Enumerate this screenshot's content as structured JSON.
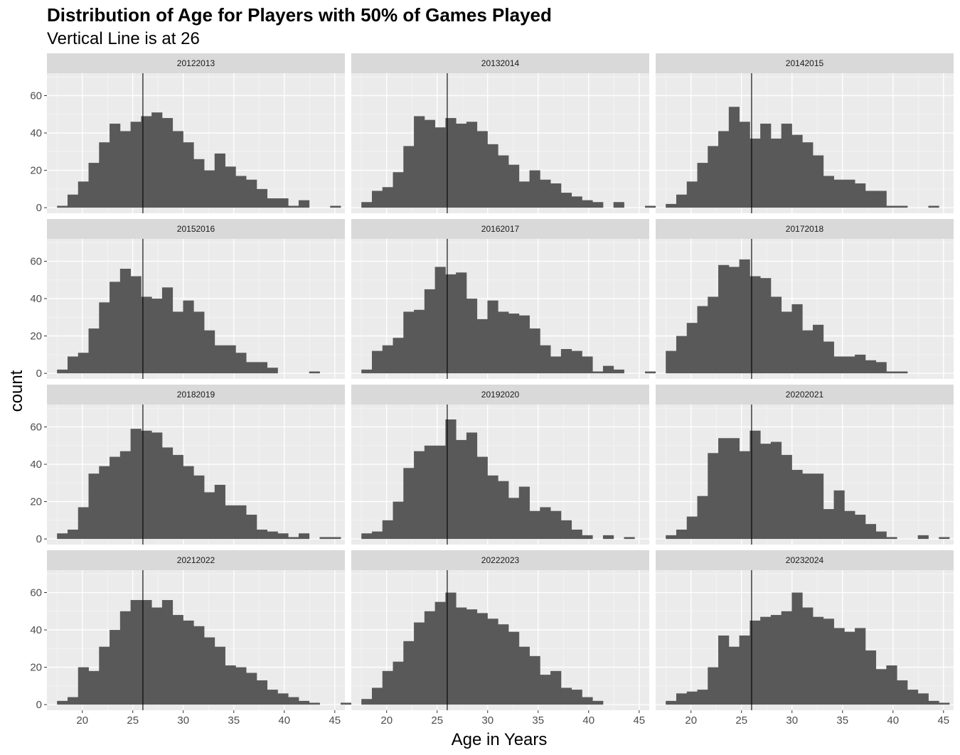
{
  "chart_data": {
    "type": "bar",
    "title": "Distribution of Age for Players with 50% of Games Played",
    "subtitle": "Vertical Line is at 26",
    "xlabel": "Age in Years",
    "ylabel": "count",
    "xlim": [
      16.5,
      46
    ],
    "ylim": [
      -3,
      72
    ],
    "x_ticks": [
      20,
      25,
      30,
      35,
      40,
      45
    ],
    "y_ticks": [
      0,
      20,
      40,
      60
    ],
    "vline": 26,
    "grid": true,
    "bin_start": 17.5,
    "bin_width": 1.04,
    "bar_color": "#595959",
    "panels": [
      {
        "season": "20122013",
        "counts": [
          1,
          7,
          14,
          24,
          35,
          45,
          41,
          46,
          49,
          51,
          48,
          41,
          35,
          26,
          20,
          29,
          22,
          17,
          15,
          10,
          5,
          5,
          1,
          4,
          0,
          0,
          1
        ]
      },
      {
        "season": "20132014",
        "counts": [
          3,
          9,
          11,
          19,
          33,
          49,
          47,
          43,
          48,
          45,
          46,
          41,
          34,
          28,
          23,
          14,
          20,
          15,
          13,
          8,
          6,
          4,
          3,
          0,
          3,
          0,
          0,
          1
        ]
      },
      {
        "season": "20142015",
        "counts": [
          2,
          7,
          14,
          24,
          33,
          41,
          54,
          46,
          37,
          45,
          37,
          45,
          39,
          35,
          28,
          17,
          15,
          15,
          13,
          9,
          9,
          1,
          1,
          0,
          0,
          1
        ]
      },
      {
        "season": "20152016",
        "counts": [
          2,
          9,
          11,
          24,
          38,
          49,
          56,
          52,
          41,
          40,
          46,
          33,
          39,
          33,
          23,
          15,
          15,
          11,
          6,
          6,
          3,
          0,
          0,
          0,
          1
        ]
      },
      {
        "season": "20162017",
        "counts": [
          2,
          12,
          15,
          19,
          33,
          34,
          45,
          57,
          53,
          54,
          40,
          29,
          39,
          33,
          32,
          31,
          24,
          15,
          9,
          13,
          12,
          9,
          1,
          4,
          2,
          0,
          0,
          1
        ]
      },
      {
        "season": "20172018",
        "counts": [
          12,
          20,
          27,
          36,
          41,
          58,
          57,
          61,
          52,
          51,
          41,
          33,
          37,
          23,
          26,
          17,
          9,
          9,
          10,
          7,
          6,
          1,
          1
        ]
      },
      {
        "season": "20182019",
        "counts": [
          3,
          5,
          17,
          35,
          39,
          44,
          47,
          59,
          58,
          57,
          49,
          45,
          39,
          34,
          25,
          29,
          18,
          18,
          13,
          5,
          4,
          3,
          1,
          3,
          0,
          1,
          1
        ]
      },
      {
        "season": "20192020",
        "counts": [
          3,
          4,
          10,
          20,
          38,
          47,
          50,
          50,
          64,
          53,
          57,
          44,
          34,
          31,
          22,
          28,
          15,
          17,
          15,
          10,
          5,
          2,
          0,
          2,
          0,
          1
        ]
      },
      {
        "season": "20202021",
        "counts": [
          2,
          5,
          12,
          23,
          46,
          54,
          54,
          47,
          58,
          51,
          52,
          45,
          37,
          35,
          35,
          16,
          26,
          15,
          13,
          8,
          4,
          1,
          0,
          0,
          2,
          0,
          1
        ]
      },
      {
        "season": "20212022",
        "counts": [
          2,
          4,
          20,
          18,
          31,
          40,
          50,
          56,
          56,
          52,
          56,
          48,
          45,
          42,
          36,
          31,
          21,
          20,
          17,
          13,
          8,
          6,
          4,
          2,
          1,
          0,
          0,
          1
        ]
      },
      {
        "season": "20222023",
        "counts": [
          3,
          9,
          18,
          23,
          34,
          44,
          50,
          55,
          60,
          52,
          51,
          49,
          46,
          43,
          39,
          31,
          26,
          16,
          18,
          9,
          8,
          4,
          2
        ]
      },
      {
        "season": "20232024",
        "counts": [
          2,
          6,
          7,
          8,
          20,
          37,
          31,
          37,
          45,
          47,
          48,
          50,
          60,
          52,
          47,
          46,
          41,
          39,
          41,
          29,
          19,
          21,
          13,
          8,
          6,
          2,
          1
        ]
      }
    ]
  }
}
